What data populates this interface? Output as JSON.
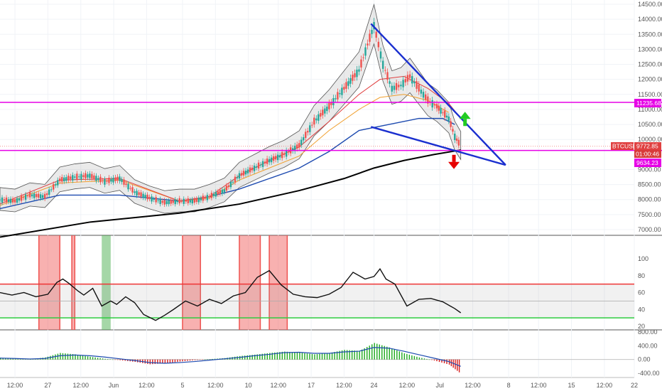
{
  "chart_data": [
    {
      "panel": "price",
      "type": "line",
      "symbol": "BTCUSD",
      "ylim": [
        6800,
        14600
      ],
      "ticks": [
        "14500.00",
        "14000.00",
        "13500.00",
        "13000.00",
        "12500.00",
        "12000.00",
        "11500.00",
        "11000.00",
        "10500.00",
        "10000.00",
        "9000.00",
        "8500.00",
        "8000.00",
        "7500.00",
        "7000.00"
      ],
      "tick_values": [
        14500,
        14000,
        13500,
        13000,
        12500,
        12000,
        11500,
        11000,
        10500,
        10000,
        9000,
        8500,
        8000,
        7500,
        7000
      ],
      "labels": {
        "last_price": "9772.85",
        "countdown": "01:00:46",
        "support": "9634.23",
        "resistance": "11235.68"
      },
      "resistance_value": 11235.68,
      "support_value": 9634.23,
      "last_value": 9772.85,
      "price_series": {
        "x": [
          0,
          5,
          10,
          15,
          20,
          25,
          30,
          35,
          40,
          45,
          50,
          55,
          60,
          65,
          70,
          75,
          80,
          85,
          90,
          95,
          100,
          105,
          110,
          115,
          120,
          125,
          128,
          131,
          134,
          137,
          140,
          143,
          146,
          148,
          150,
          152,
          154
        ],
        "y": [
          8000,
          7950,
          8150,
          8100,
          8650,
          8750,
          8800,
          8600,
          8700,
          8250,
          8050,
          7900,
          7950,
          7950,
          8100,
          8300,
          8800,
          9050,
          9300,
          9500,
          9800,
          10600,
          11100,
          11700,
          12300,
          13800,
          12500,
          11700,
          11800,
          12100,
          11700,
          11300,
          11100,
          10900,
          10700,
          10100,
          9772.85
        ]
      },
      "ema_200": {
        "x": [
          0,
          30,
          60,
          80,
          100,
          115,
          125,
          135,
          145,
          154
        ],
        "y": [
          6750,
          7250,
          7550,
          7850,
          8300,
          8700,
          9050,
          9300,
          9500,
          9650
        ]
      },
      "ma_blue": {
        "x": [
          0,
          20,
          40,
          60,
          70,
          80,
          90,
          100,
          110,
          120,
          130,
          140,
          148,
          152
        ],
        "y": [
          7700,
          8150,
          8150,
          7950,
          8100,
          8350,
          8700,
          9050,
          9600,
          10300,
          10500,
          10700,
          10700,
          10500
        ]
      },
      "ma_orange": {
        "x": [
          0,
          20,
          40,
          60,
          70,
          80,
          90,
          100,
          110,
          120,
          127,
          135,
          143,
          150
        ],
        "y": [
          7800,
          8550,
          8650,
          7950,
          8050,
          8650,
          9050,
          9450,
          10300,
          11000,
          11400,
          11500,
          11300,
          10900
        ]
      },
      "ma_red": {
        "x": [
          0,
          20,
          40,
          60,
          70,
          80,
          90,
          100,
          110,
          120,
          127,
          135,
          143,
          150,
          154
        ],
        "y": [
          7850,
          8650,
          8700,
          7950,
          8100,
          8800,
          9300,
          9750,
          10600,
          11500,
          12000,
          12100,
          11700,
          11200,
          10700
        ]
      }
    },
    {
      "panel": "rsi",
      "type": "line",
      "ylim": [
        20,
        100
      ],
      "ticks": [
        "100",
        "80",
        "60",
        "40",
        "20"
      ],
      "tick_values": [
        100,
        80,
        60,
        40,
        20
      ],
      "overbought": 70,
      "oversold": 30,
      "midline": 50,
      "x": [
        0,
        4,
        8,
        12,
        16,
        19,
        21,
        23,
        26,
        28,
        31,
        34,
        37,
        39,
        42,
        45,
        48,
        52,
        55,
        58,
        62,
        66,
        70,
        74,
        78,
        82,
        86,
        90,
        94,
        98,
        102,
        106,
        110,
        114,
        118,
        122,
        125,
        127,
        129,
        132,
        136,
        140,
        144,
        148,
        152,
        154
      ],
      "y": [
        60,
        57,
        60,
        55,
        58,
        72,
        76,
        71,
        62,
        57,
        65,
        44,
        50,
        46,
        55,
        48,
        34,
        27,
        33,
        40,
        50,
        44,
        52,
        47,
        56,
        60,
        78,
        86,
        69,
        58,
        55,
        54,
        58,
        66,
        84,
        76,
        79,
        88,
        76,
        70,
        44,
        52,
        53,
        49,
        41,
        36
      ]
    },
    {
      "panel": "macd",
      "type": "bar",
      "ylim": [
        -500,
        850
      ],
      "ticks": [
        "800.00",
        "400.00",
        "0.00",
        "-400.00"
      ],
      "tick_values": [
        800,
        400,
        0,
        -400
      ],
      "x": [
        0,
        5,
        10,
        15,
        20,
        25,
        30,
        35,
        40,
        45,
        50,
        55,
        60,
        65,
        70,
        75,
        80,
        85,
        90,
        95,
        100,
        105,
        110,
        115,
        120,
        125,
        130,
        135,
        140,
        145,
        150,
        154
      ],
      "y": [
        50,
        30,
        5,
        60,
        190,
        150,
        80,
        20,
        -20,
        -70,
        -140,
        -110,
        -60,
        -20,
        10,
        40,
        100,
        140,
        190,
        230,
        200,
        150,
        190,
        280,
        250,
        480,
        350,
        180,
        60,
        -30,
        -150,
        -420
      ],
      "signal": [
        40,
        30,
        15,
        30,
        110,
        130,
        110,
        70,
        20,
        -30,
        -90,
        -110,
        -90,
        -60,
        -20,
        20,
        60,
        110,
        150,
        200,
        210,
        180,
        180,
        220,
        240,
        350,
        330,
        240,
        140,
        40,
        -60,
        -200
      ]
    }
  ],
  "x_axis": {
    "ticks": [
      "12:00",
      "27",
      "12:00",
      "Jun",
      "12:00",
      "5",
      "12:00",
      "10",
      "12:00",
      "17",
      "12:00",
      "24",
      "12:00",
      "Jul",
      "12:00",
      "8",
      "12:00",
      "15",
      "12:00",
      "22"
    ],
    "tick_values": [
      5,
      16,
      27,
      38,
      49,
      61,
      72,
      83,
      93,
      104,
      115,
      125,
      136,
      147,
      158,
      170,
      180,
      191,
      202,
      212
    ]
  },
  "highlight_zones": {
    "red": [
      [
        13,
        20
      ],
      [
        24,
        25
      ],
      [
        61,
        67
      ],
      [
        80,
        87
      ],
      [
        90,
        96
      ]
    ],
    "green": [
      [
        34,
        37
      ]
    ]
  },
  "drawings": {
    "triangle_top": [
      124,
      13850
    ],
    "triangle_right": [
      169,
      9150
    ],
    "triangle_bottom_left": [
      124,
      10420
    ],
    "green_arrow_at": [
      154,
      10850
    ],
    "red_arrow_at": [
      151,
      9300
    ]
  },
  "colors": {
    "resistance": "#e600e6",
    "support": "#e600e6",
    "price_up": "#26a69a",
    "price_down": "#ef5350",
    "ema_200": "#000000",
    "ma_blue": "#1e4bb0",
    "ma_orange": "#f0a030",
    "ma_red": "#e04040",
    "triangle": "#1a2fcf",
    "rsi_line": "#111111",
    "rsi_overbought": "#ef3535",
    "rsi_oversold": "#2ecc40",
    "zone_red": "#ef5350",
    "zone_green": "#4caf50",
    "macd_pos": "#1faa1f",
    "macd_neg": "#d61a1a",
    "macd_signal": "#1e4bb0",
    "arrow_up": "#22cc22",
    "arrow_down": "#e60000"
  }
}
